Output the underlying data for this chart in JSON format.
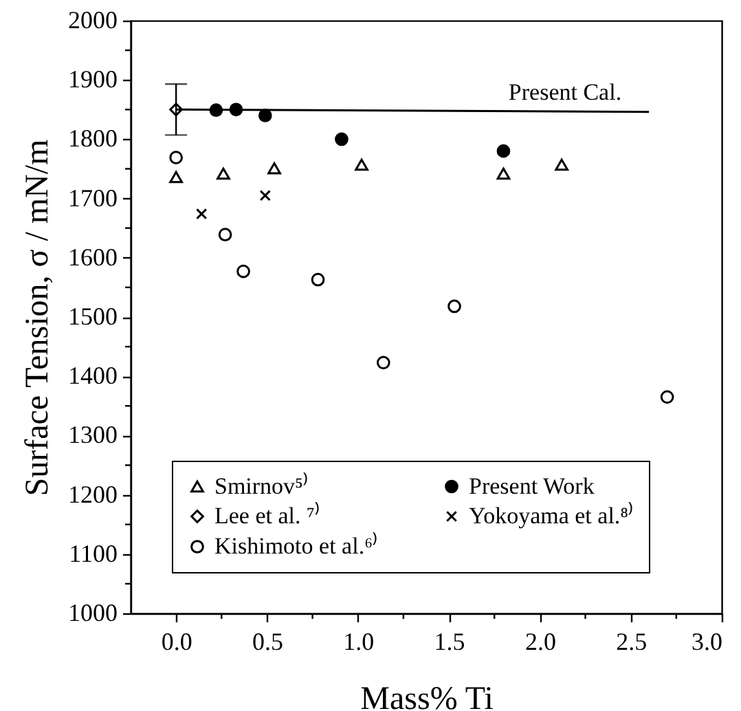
{
  "chart_data": {
    "type": "scatter",
    "xlabel": "Mass% Ti",
    "ylabel": "Surface Tension, σ / mN/m",
    "xlim": [
      -0.25,
      3.0
    ],
    "xticks": [
      {
        "value": 0,
        "label": "0.0"
      },
      {
        "value": 0.25,
        "label": null
      },
      {
        "value": 0.5,
        "label": "0.5"
      },
      {
        "value": 0.75,
        "label": null
      },
      {
        "value": 1,
        "label": "1.0"
      },
      {
        "value": 1.25,
        "label": null
      },
      {
        "value": 1.5,
        "label": "1.5"
      },
      {
        "value": 1.75,
        "label": null
      },
      {
        "value": 2,
        "label": "2.0"
      },
      {
        "value": 2.25,
        "label": null
      },
      {
        "value": 2.5,
        "label": "2.5"
      },
      {
        "value": 2.75,
        "label": null
      },
      {
        "value": 3,
        "label": "3.0"
      }
    ],
    "ylim": [
      1000,
      2000
    ],
    "yticks": [
      1000,
      {
        "value": 1050,
        "label": null
      },
      1100,
      {
        "value": 1150,
        "label": null
      },
      1200,
      {
        "value": 1250,
        "label": null
      },
      1300,
      {
        "value": 1350,
        "label": null
      },
      1400,
      {
        "value": 1450,
        "label": null
      },
      1500,
      {
        "value": 1550,
        "label": null
      },
      1600,
      {
        "value": 1650,
        "label": null
      },
      1700,
      {
        "value": 1750,
        "label": null
      },
      1800,
      {
        "value": 1850,
        "label": null
      },
      1900,
      {
        "value": 1950,
        "label": null
      },
      2000
    ],
    "grid": false,
    "legend": "bottom left",
    "series": [
      {
        "name": "Smirnov⁵⁾",
        "color": "#000000",
        "marker": "triangle",
        "x": [
          0,
          0.26,
          0.54,
          1.02,
          1.8,
          2.12
        ],
        "values": [
          1736,
          1742,
          1751,
          1757,
          1742,
          1757
        ]
      },
      {
        "name": "Kishimoto et al.⁶⁾",
        "color": "#000000",
        "marker": "circle",
        "x": [
          0,
          0.27,
          0.37,
          0.78,
          1.14,
          1.53,
          2.7
        ],
        "values": [
          1769,
          1639,
          1577,
          1563,
          1423,
          1518,
          1365
        ]
      },
      {
        "name": "Yokoyama et al.⁸⁾",
        "color": "#000000",
        "marker": "cross",
        "x": [
          0.14,
          0.49
        ],
        "values": [
          1674,
          1705
        ]
      },
      {
        "name": "Lee et al. ⁷⁾",
        "color": "#000000",
        "marker": "diamond",
        "x": [
          0
        ],
        "values": [
          1850
        ],
        "errors": [
          43
        ]
      },
      {
        "name": "Present Work",
        "color": "#000000",
        "marker": "circle",
        "x": [
          0.22,
          0.33,
          0.49,
          0.91,
          1.8
        ],
        "values": [
          1849,
          1850,
          1840,
          1800,
          1780
        ]
      },
      {
        "name": "Present Cal.",
        "type": "line",
        "color": "#000000",
        "marker": "none",
        "line_style": "solid",
        "x": [
          0,
          2.6
        ],
        "values": [
          1850,
          1846
        ]
      }
    ]
  }
}
